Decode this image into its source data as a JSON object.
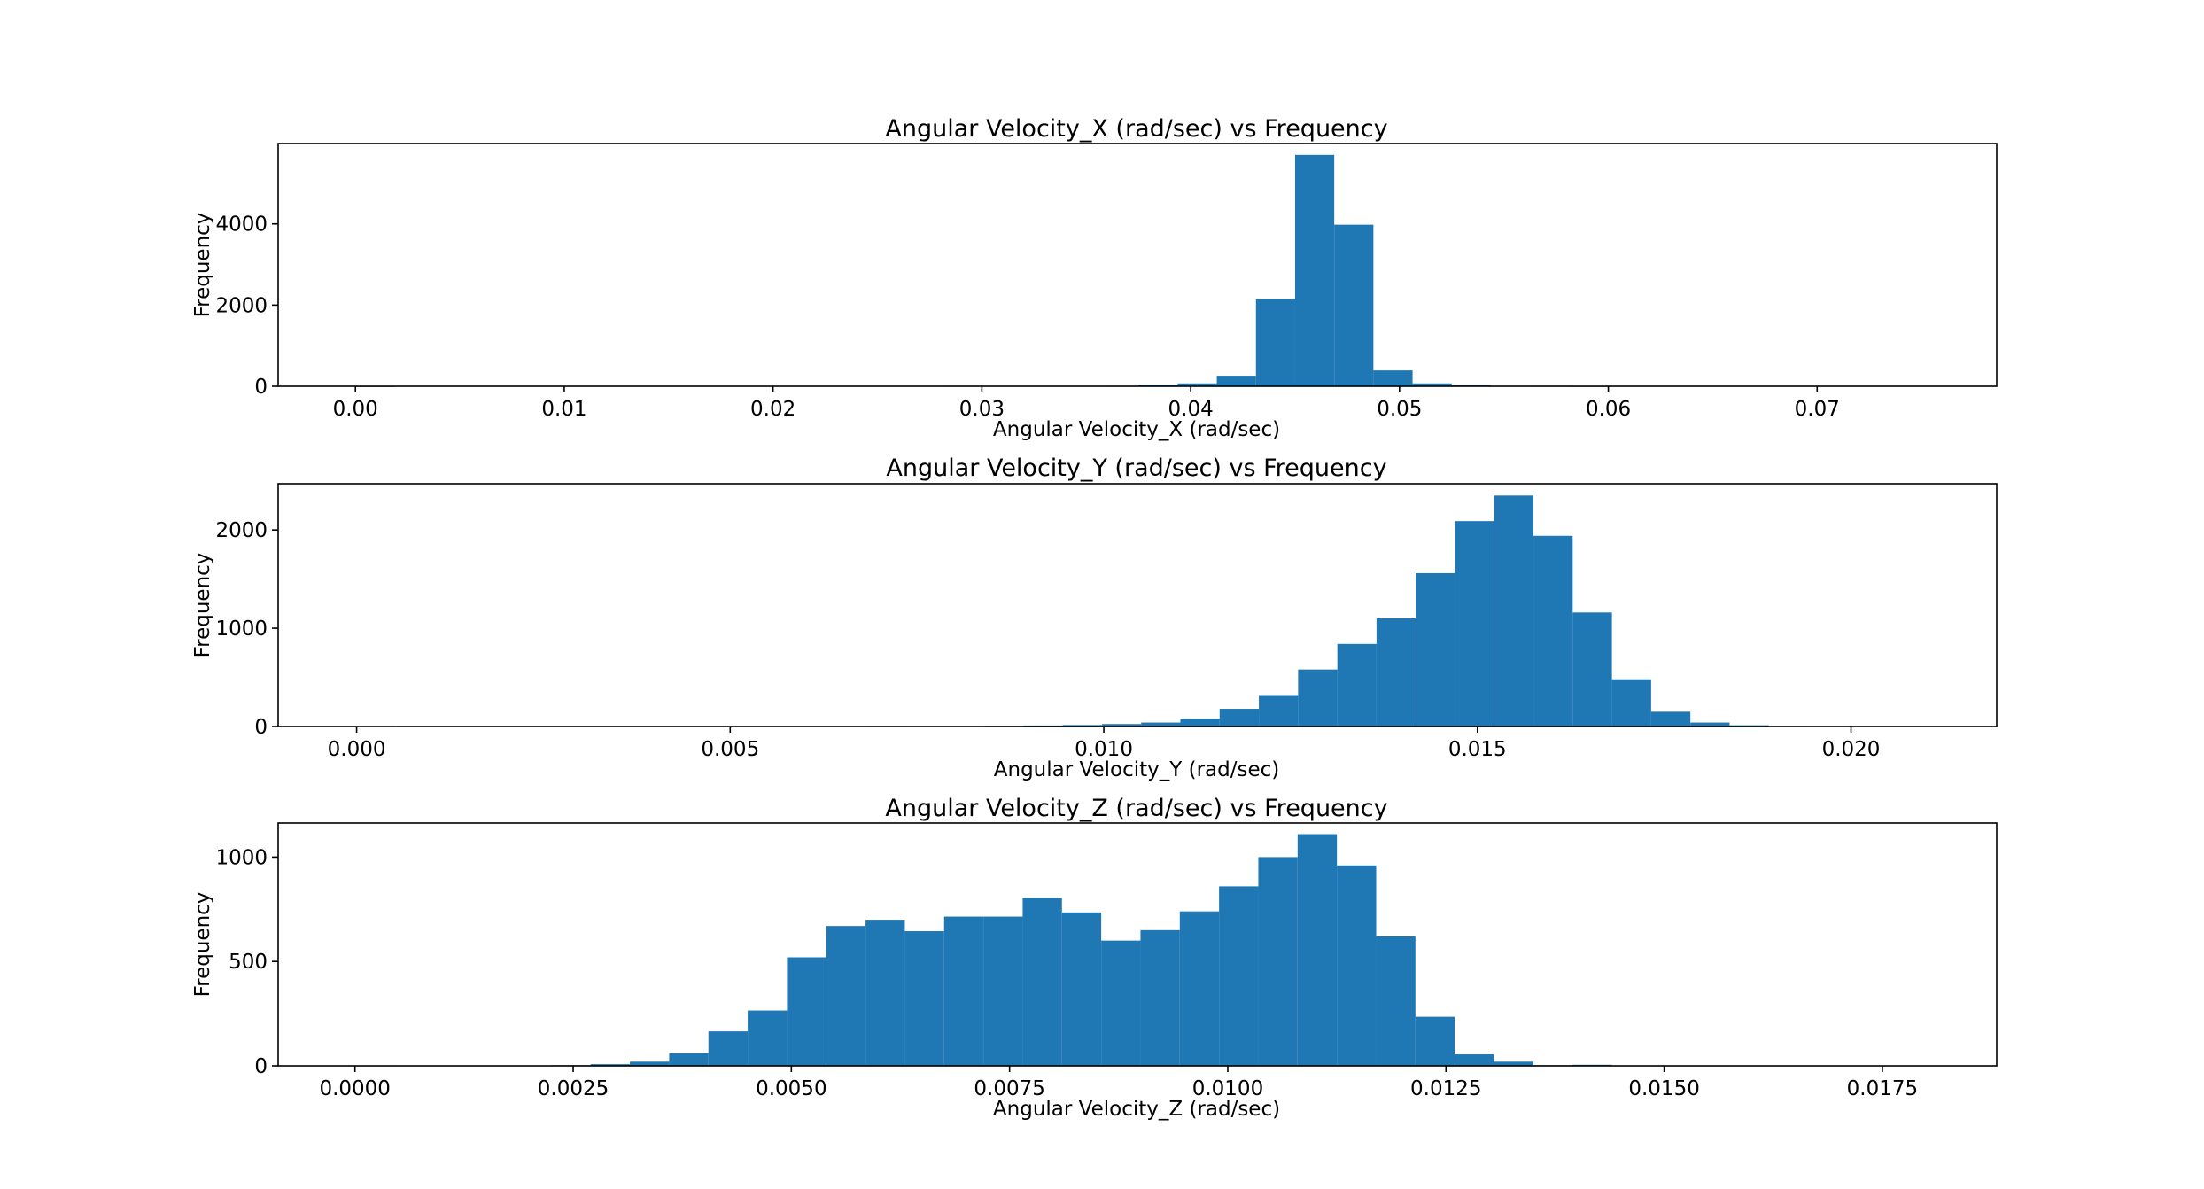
{
  "colors": {
    "bar": "#1f77b4",
    "axes": "#000000",
    "background": "#ffffff"
  },
  "chart_data": [
    {
      "type": "bar",
      "title": "Angular Velocity_X (rad/sec) vs Frequency",
      "xlabel": "Angular Velocity_X (rad/sec)",
      "ylabel": "Frequency",
      "xlim": [
        -0.0037,
        0.0786
      ],
      "ylim": [
        0,
        5980
      ],
      "grid": false,
      "xticks": [
        0.0,
        0.01,
        0.02,
        0.03,
        0.04,
        0.05,
        0.06,
        0.07
      ],
      "xtick_labels": [
        "0.00",
        "0.01",
        "0.02",
        "0.03",
        "0.04",
        "0.05",
        "0.06",
        "0.07"
      ],
      "yticks": [
        0,
        2000,
        4000
      ],
      "ytick_labels": [
        "0",
        "2000",
        "4000"
      ],
      "bin_edges": [
        0.0,
        0.001875,
        0.00375,
        0.005625,
        0.0075,
        0.009375,
        0.01125,
        0.013125,
        0.015,
        0.016875,
        0.01875,
        0.020625,
        0.0225,
        0.024375,
        0.02625,
        0.028125,
        0.03,
        0.031875,
        0.03375,
        0.035625,
        0.0375,
        0.039375,
        0.04125,
        0.043125,
        0.045,
        0.046875,
        0.04875,
        0.050625,
        0.0525,
        0.054375,
        0.05625,
        0.058125,
        0.06,
        0.061875,
        0.06375,
        0.065625,
        0.0675,
        0.069375,
        0.07125,
        0.073125,
        0.075
      ],
      "values": [
        1,
        0,
        0,
        0,
        0,
        0,
        0,
        0,
        0,
        0,
        0,
        0,
        0,
        0,
        0,
        12,
        0,
        8,
        10,
        12,
        30,
        70,
        260,
        2150,
        5700,
        3980,
        390,
        70,
        25,
        8,
        5,
        3,
        0,
        0,
        0,
        0,
        0,
        0,
        0,
        0
      ]
    },
    {
      "type": "bar",
      "title": "Angular Velocity_Y (rad/sec) vs Frequency",
      "xlabel": "Angular Velocity_Y (rad/sec)",
      "ylabel": "Frequency",
      "xlim": [
        -0.00105,
        0.02195
      ],
      "ylim": [
        0,
        2470
      ],
      "grid": false,
      "xticks": [
        0.0,
        0.005,
        0.01,
        0.015,
        0.02
      ],
      "xtick_labels": [
        "0.000",
        "0.005",
        "0.010",
        "0.015",
        "0.020"
      ],
      "yticks": [
        0,
        1000,
        2000
      ],
      "ytick_labels": [
        "0",
        "1000",
        "2000"
      ],
      "bin_edges": [
        0.0,
        0.000525,
        0.00105,
        0.001575,
        0.0021,
        0.002625,
        0.00315,
        0.003675,
        0.0042,
        0.004725,
        0.00525,
        0.005775,
        0.0063,
        0.006825,
        0.00735,
        0.007875,
        0.0084,
        0.008925,
        0.00945,
        0.009975,
        0.0105,
        0.011025,
        0.01155,
        0.012075,
        0.0126,
        0.013125,
        0.01365,
        0.014175,
        0.0147,
        0.015225,
        0.01575,
        0.016275,
        0.0168,
        0.017325,
        0.01785,
        0.018375,
        0.0189,
        0.019425,
        0.01995,
        0.020475,
        0.021
      ],
      "values": [
        1,
        0,
        0,
        0,
        0,
        0,
        0,
        0,
        0,
        0,
        0,
        3,
        0,
        2,
        3,
        4,
        6,
        10,
        15,
        25,
        40,
        80,
        180,
        320,
        580,
        840,
        1100,
        1560,
        2090,
        2350,
        1940,
        1160,
        480,
        150,
        40,
        12,
        5,
        3,
        2,
        5
      ]
    },
    {
      "type": "bar",
      "title": "Angular Velocity_Z (rad/sec) vs Frequency",
      "xlabel": "Angular Velocity_Z (rad/sec)",
      "ylabel": "Frequency",
      "xlim": [
        -0.00088,
        0.01881
      ],
      "ylim": [
        0,
        1163
      ],
      "grid": false,
      "xticks": [
        0.0,
        0.0025,
        0.005,
        0.0075,
        0.01,
        0.0125,
        0.015,
        0.0175
      ],
      "xtick_labels": [
        "0.0000",
        "0.0025",
        "0.0050",
        "0.0075",
        "0.0100",
        "0.0125",
        "0.0150",
        "0.0175"
      ],
      "yticks": [
        0,
        500,
        1000
      ],
      "ytick_labels": [
        "0",
        "500",
        "1000"
      ],
      "bin_edges": [
        0.0,
        0.00045,
        0.0009,
        0.00135,
        0.0018,
        0.00225,
        0.0027,
        0.00315,
        0.0036,
        0.00405,
        0.0045,
        0.00495,
        0.0054,
        0.00585,
        0.0063,
        0.00675,
        0.0072,
        0.00765,
        0.0081,
        0.00855,
        0.009,
        0.00945,
        0.0099,
        0.01035,
        0.0108,
        0.01125,
        0.0117,
        0.01215,
        0.0126,
        0.01305,
        0.0135,
        0.01395,
        0.0144,
        0.01485,
        0.0153,
        0.01575,
        0.0162,
        0.01665,
        0.0171,
        0.01755,
        0.018
      ],
      "values": [
        1,
        0,
        0,
        0,
        0,
        3,
        8,
        20,
        60,
        165,
        265,
        520,
        670,
        700,
        645,
        715,
        715,
        805,
        735,
        600,
        650,
        740,
        860,
        1000,
        1110,
        960,
        620,
        235,
        55,
        20,
        3,
        5,
        2,
        1,
        1,
        0,
        0,
        0,
        0,
        0
      ]
    }
  ]
}
